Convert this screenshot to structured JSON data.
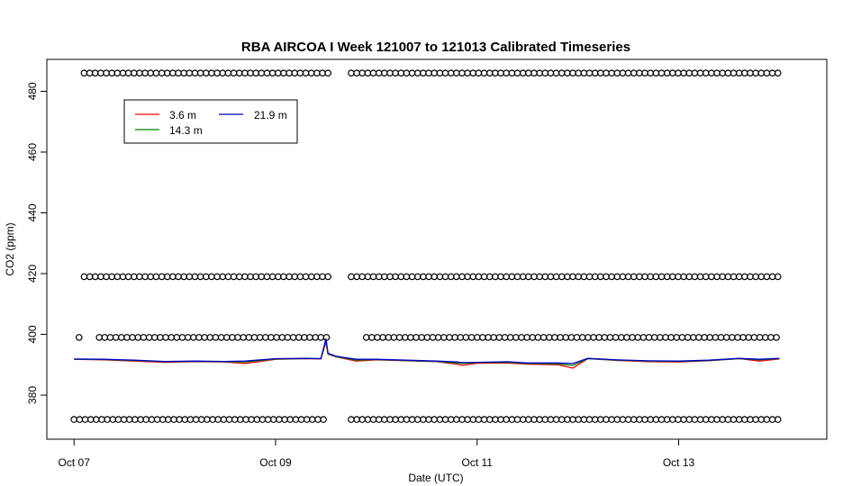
{
  "chart_data": {
    "type": "line",
    "title": "RBA AIRCOA I  Week 121007 to 121013  Calibrated Timeseries",
    "xlabel": "Date (UTC)",
    "ylabel": "CO2 (ppm)",
    "x_ticks": [
      {
        "label": "Oct 07",
        "day": 7
      },
      {
        "label": "Oct 09",
        "day": 9
      },
      {
        "label": "Oct 11",
        "day": 11
      },
      {
        "label": "Oct 13",
        "day": 13
      }
    ],
    "y_ticks": [
      380,
      400,
      420,
      440,
      460,
      480
    ],
    "xlim": [
      6.73,
      14.47
    ],
    "ylim": [
      365.5,
      490.5
    ],
    "grid": false,
    "legend_position": "top-left",
    "series": [
      {
        "name": "3.6 m",
        "color": "#ff0000",
        "x": [
          7.0,
          7.3,
          7.6,
          7.9,
          8.2,
          8.5,
          8.7,
          9.0,
          9.3,
          9.45,
          9.5,
          9.52,
          9.6,
          9.8,
          10.0,
          10.3,
          10.6,
          10.8,
          10.85,
          11.0,
          11.3,
          11.5,
          11.8,
          11.95,
          12.1,
          12.4,
          12.7,
          13.0,
          13.3,
          13.6,
          13.8,
          14.0
        ],
        "y": [
          391.8,
          391.6,
          391.2,
          390.8,
          391.0,
          390.9,
          390.4,
          391.8,
          392.0,
          391.9,
          397.5,
          393.5,
          392.6,
          391.2,
          391.6,
          391.3,
          391.0,
          390.2,
          389.8,
          390.5,
          390.6,
          390.2,
          390.0,
          388.9,
          392.0,
          391.4,
          391.0,
          390.9,
          391.3,
          392.0,
          391.2,
          391.9
        ]
      },
      {
        "name": "14.3 m",
        "color": "#008000",
        "x": [
          7.0,
          7.3,
          7.6,
          7.9,
          8.2,
          8.5,
          8.7,
          9.0,
          9.3,
          9.45,
          9.5,
          9.52,
          9.6,
          9.8,
          10.0,
          10.3,
          10.6,
          10.8,
          10.85,
          11.0,
          11.3,
          11.5,
          11.8,
          11.95,
          12.1,
          12.4,
          12.7,
          13.0,
          13.3,
          13.6,
          13.8,
          14.0
        ],
        "y": [
          391.8,
          391.7,
          391.4,
          391.0,
          391.1,
          391.0,
          390.9,
          391.9,
          392.0,
          392.0,
          398.0,
          393.6,
          392.7,
          391.5,
          391.7,
          391.4,
          391.1,
          390.6,
          390.4,
          390.7,
          390.8,
          390.4,
          390.3,
          389.8,
          392.0,
          391.5,
          391.2,
          391.1,
          391.4,
          392.0,
          391.6,
          392.0
        ]
      },
      {
        "name": "21.9 m",
        "color": "#0000cc",
        "x": [
          7.0,
          7.3,
          7.6,
          7.9,
          8.2,
          8.5,
          8.7,
          9.0,
          9.3,
          9.45,
          9.5,
          9.52,
          9.6,
          9.8,
          10.0,
          10.3,
          10.6,
          10.8,
          10.85,
          11.0,
          11.3,
          11.5,
          11.8,
          11.95,
          12.1,
          12.4,
          12.7,
          13.0,
          13.3,
          13.6,
          13.8,
          14.0
        ],
        "y": [
          391.9,
          391.8,
          391.5,
          391.1,
          391.2,
          391.1,
          391.2,
          392.0,
          392.1,
          392.0,
          398.6,
          393.8,
          392.8,
          391.8,
          391.8,
          391.5,
          391.2,
          390.9,
          390.7,
          390.8,
          391.0,
          390.6,
          390.6,
          390.4,
          392.1,
          391.6,
          391.3,
          391.2,
          391.5,
          392.1,
          391.8,
          392.1
        ]
      }
    ],
    "flag_markers": {
      "marker": "open-circle",
      "levels": [
        {
          "y": 486,
          "x_start": 7.1,
          "x_end": 9.55
        },
        {
          "y": 486,
          "x_start": 9.75,
          "x_end": 14.0
        },
        {
          "y": 419,
          "x_start": 7.1,
          "x_end": 9.55
        },
        {
          "y": 419,
          "x_start": 9.75,
          "x_end": 14.0
        },
        {
          "y": 399,
          "x_start": 7.05,
          "x_end": 7.1
        },
        {
          "y": 399,
          "x_start": 7.25,
          "x_end": 9.55
        },
        {
          "y": 399,
          "x_start": 9.9,
          "x_end": 14.0
        },
        {
          "y": 372,
          "x_start": 7.0,
          "x_end": 9.5
        },
        {
          "y": 372,
          "x_start": 9.75,
          "x_end": 14.0
        }
      ],
      "spacing_days": 0.055
    }
  }
}
